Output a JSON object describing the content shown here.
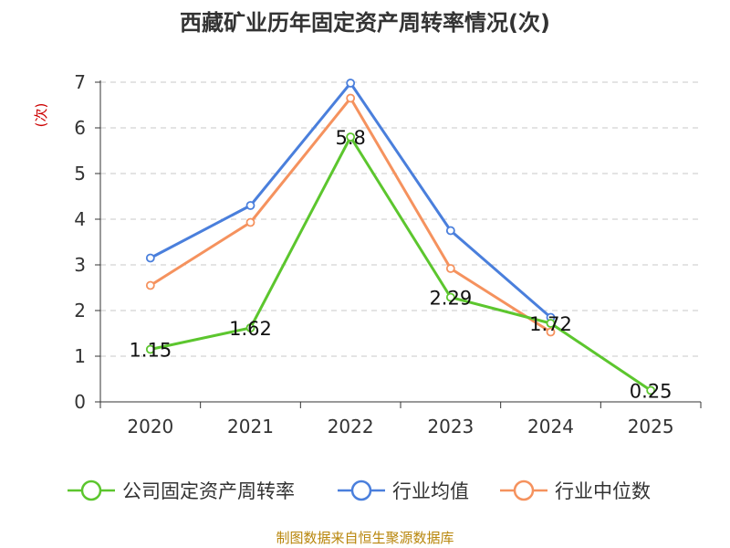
{
  "chart_data": {
    "type": "line",
    "title": "西藏矿业历年固定资产周转率情况(次)",
    "ylabel": "(次)",
    "xlabel": "",
    "categories": [
      "2020",
      "2021",
      "2022",
      "2023",
      "2024",
      "2025"
    ],
    "ylim": [
      0,
      7
    ],
    "yticks": [
      0,
      1,
      2,
      3,
      4,
      5,
      6,
      7
    ],
    "grid": true,
    "legend_position": "bottom",
    "series": [
      {
        "name": "公司固定资产周转率",
        "color": "#5cc62e",
        "values": [
          1.15,
          1.62,
          5.8,
          2.29,
          1.72,
          0.25
        ],
        "labels": [
          "1.15",
          "1.62",
          "5.8",
          "2.29",
          "1.72",
          "0.25"
        ]
      },
      {
        "name": "行业均值",
        "color": "#4a7fdc",
        "values": [
          3.15,
          4.3,
          6.98,
          3.75,
          1.85,
          null
        ]
      },
      {
        "name": "行业中位数",
        "color": "#f5925e",
        "values": [
          2.55,
          3.93,
          6.65,
          2.92,
          1.53,
          null
        ]
      }
    ],
    "source": "制图数据来自恒生聚源数据库"
  }
}
